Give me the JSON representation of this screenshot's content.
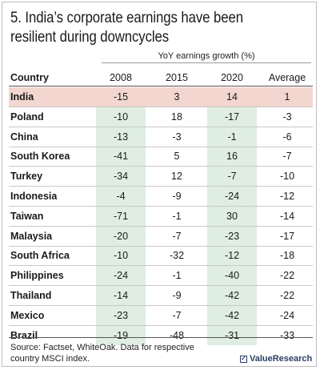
{
  "chart_data": {
    "type": "table",
    "title": "5. India’s corporate earnings have been resilient during downcycles",
    "column_group_label": "YoY earnings growth (%)",
    "header_country": "Country",
    "columns": [
      "2008",
      "2015",
      "2020",
      "Average"
    ],
    "highlight_row": "India",
    "shaded_columns": [
      "2008",
      "2020"
    ],
    "rows": [
      {
        "country": "India",
        "values": [
          "-15",
          "3",
          "14",
          "1"
        ]
      },
      {
        "country": "Poland",
        "values": [
          "-10",
          "18",
          "-17",
          "-3"
        ]
      },
      {
        "country": "China",
        "values": [
          "-13",
          "-3",
          "-1",
          "-6"
        ]
      },
      {
        "country": "South Korea",
        "values": [
          "-41",
          "5",
          "16",
          "-7"
        ]
      },
      {
        "country": "Turkey",
        "values": [
          "-34",
          "12",
          "-7",
          "-10"
        ]
      },
      {
        "country": "Indonesia",
        "values": [
          "-4",
          "-9",
          "-24",
          "-12"
        ]
      },
      {
        "country": "Taiwan",
        "values": [
          "-71",
          "-1",
          "30",
          "-14"
        ]
      },
      {
        "country": "Malaysia",
        "values": [
          "-20",
          "-7",
          "-23",
          "-17"
        ]
      },
      {
        "country": "South Africa",
        "values": [
          "-10",
          "-32",
          "-12",
          "-18"
        ]
      },
      {
        "country": "Philippines",
        "values": [
          "-24",
          "-1",
          "-40",
          "-22"
        ]
      },
      {
        "country": "Thailand",
        "values": [
          "-14",
          "-9",
          "-42",
          "-22"
        ]
      },
      {
        "country": "Mexico",
        "values": [
          "-23",
          "-7",
          "-42",
          "-24"
        ]
      },
      {
        "country": "Brazil",
        "values": [
          "-19",
          "-48",
          "-31",
          "-33"
        ]
      }
    ],
    "colors": {
      "highlight": "#f2d6cf",
      "shade": "#dfeee0",
      "brand": "#2c3e66"
    }
  },
  "footer": {
    "source": "Source: Factset, WhiteOak. Data for respective country MSCI index.",
    "brand": "ValueResearch",
    "brand_icon": "check-box-icon"
  }
}
